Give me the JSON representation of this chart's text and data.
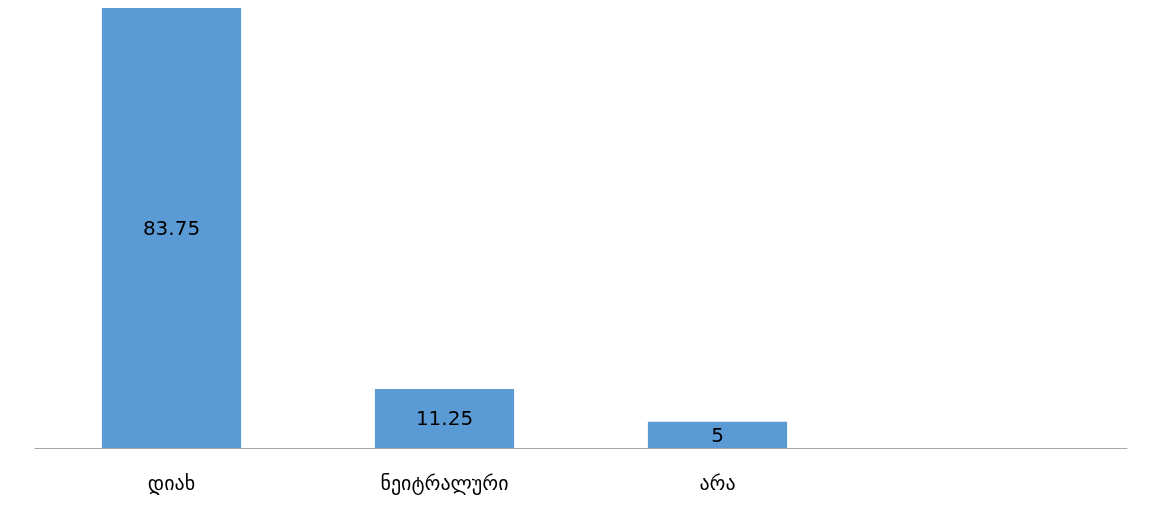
{
  "chart_data": {
    "type": "bar",
    "categories": [
      "დიახ",
      "ნეიტრალური",
      "არა",
      null
    ],
    "values": [
      83.75,
      11.25,
      5,
      null
    ],
    "color": "#5b9bd5",
    "data_labels": true
  }
}
